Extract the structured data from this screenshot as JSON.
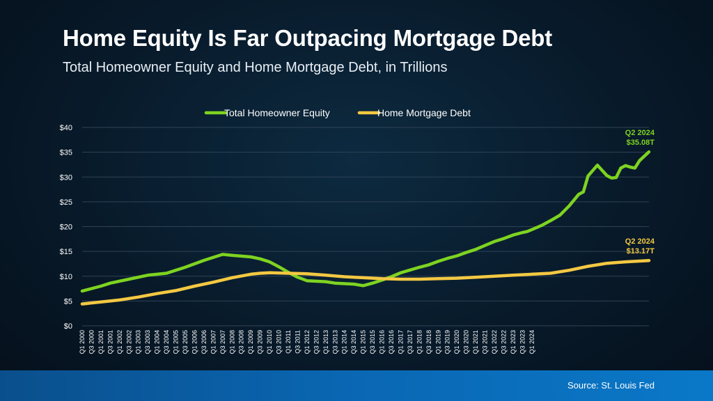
{
  "header": {
    "title": "Home Equity Is Far Outpacing Mortgage Debt",
    "subtitle": "Total Homeowner Equity and Home Mortgage Debt, in Trillions"
  },
  "footer": {
    "source": "Source: St. Louis Fed"
  },
  "colors": {
    "equity": "#7ed321",
    "debt": "#f4c842",
    "grid": "#2f4356",
    "text": "#ffffff"
  },
  "chart_data": {
    "type": "line",
    "title": "Home Equity Is Far Outpacing Mortgage Debt",
    "subtitle": "Total Homeowner Equity and Home Mortgage Debt, in Trillions",
    "xlabel": "",
    "ylabel": "",
    "ylim": [
      0,
      40
    ],
    "yticks": [
      0,
      5,
      10,
      15,
      20,
      25,
      30,
      35,
      40
    ],
    "ytick_labels": [
      "$0",
      "$5",
      "$10",
      "$15",
      "$20",
      "$25",
      "$30",
      "$35",
      "$40"
    ],
    "grid": true,
    "legend_position": "top",
    "x_tick_labels": [
      "Q1 2000",
      "Q3 2000",
      "Q1 2001",
      "Q3 2001",
      "Q1 2002",
      "Q3 2002",
      "Q1 2003",
      "Q3 2003",
      "Q1 2004",
      "Q3 2004",
      "Q1 2005",
      "Q3 2005",
      "Q1 2006",
      "Q3 2006",
      "Q1 2007",
      "Q3 2007",
      "Q1 2008",
      "Q3 2008",
      "Q1 2009",
      "Q3 2009",
      "Q1 2010",
      "Q3 2010",
      "Q1 2011",
      "Q3 2011",
      "Q1 2012",
      "Q3 2012",
      "Q1 2013",
      "Q3 2013",
      "Q1 2014",
      "Q3 2014",
      "Q1 2015",
      "Q3 2015",
      "Q1 2016",
      "Q3 2016",
      "Q1 2017",
      "Q3 2017",
      "Q1 2018",
      "Q3 2018",
      "Q1 2019",
      "Q3 2019",
      "Q1 2020",
      "Q3 2020",
      "Q1 2021",
      "Q3 2021",
      "Q1 2022",
      "Q3 2022",
      "Q1 2023",
      "Q3 2023",
      "Q1 2024"
    ],
    "quarter_count": 98,
    "series": [
      {
        "name": "Total Homeowner Equity",
        "color": "#7ed321",
        "points": [
          [
            0,
            7.0
          ],
          [
            4,
            8.0
          ],
          [
            6,
            8.6
          ],
          [
            10,
            9.4
          ],
          [
            14,
            10.2
          ],
          [
            18,
            10.6
          ],
          [
            22,
            11.8
          ],
          [
            26,
            13.2
          ],
          [
            30,
            14.4
          ],
          [
            32,
            14.2
          ],
          [
            36,
            13.9
          ],
          [
            38,
            13.5
          ],
          [
            40,
            12.9
          ],
          [
            42,
            11.9
          ],
          [
            44,
            10.8
          ],
          [
            46,
            9.8
          ],
          [
            48,
            9.1
          ],
          [
            52,
            8.9
          ],
          [
            54,
            8.6
          ],
          [
            58,
            8.4
          ],
          [
            60,
            8.1
          ],
          [
            62,
            8.6
          ],
          [
            64,
            9.2
          ],
          [
            66,
            9.9
          ],
          [
            68,
            10.7
          ],
          [
            72,
            11.8
          ],
          [
            74,
            12.3
          ],
          [
            76,
            13.0
          ],
          [
            78,
            13.6
          ],
          [
            80,
            14.1
          ],
          [
            82,
            14.8
          ],
          [
            84,
            15.4
          ],
          [
            86,
            16.2
          ],
          [
            88,
            17.0
          ],
          [
            90,
            17.6
          ],
          [
            92,
            18.3
          ],
          [
            94,
            18.8
          ],
          [
            95,
            19.0
          ],
          [
            96,
            19.4
          ],
          [
            98,
            20.2
          ],
          [
            100,
            21.2
          ],
          [
            102,
            22.3
          ],
          [
            104,
            24.2
          ],
          [
            106,
            26.5
          ],
          [
            107,
            27.0
          ],
          [
            108,
            30.2
          ],
          [
            110,
            32.4
          ],
          [
            112,
            30.3
          ],
          [
            113,
            29.8
          ],
          [
            114,
            29.9
          ],
          [
            115,
            31.8
          ],
          [
            116,
            32.3
          ],
          [
            117,
            32.0
          ],
          [
            118,
            31.8
          ],
          [
            119,
            33.3
          ],
          [
            121,
            35.08
          ]
        ]
      },
      {
        "name": "Home Mortgage Debt",
        "color": "#f4c842",
        "points": [
          [
            0,
            4.4
          ],
          [
            4,
            4.8
          ],
          [
            8,
            5.2
          ],
          [
            12,
            5.8
          ],
          [
            16,
            6.5
          ],
          [
            20,
            7.1
          ],
          [
            24,
            8.0
          ],
          [
            28,
            8.8
          ],
          [
            32,
            9.7
          ],
          [
            36,
            10.4
          ],
          [
            38,
            10.6
          ],
          [
            40,
            10.7
          ],
          [
            44,
            10.6
          ],
          [
            48,
            10.5
          ],
          [
            52,
            10.2
          ],
          [
            56,
            9.9
          ],
          [
            60,
            9.7
          ],
          [
            64,
            9.5
          ],
          [
            68,
            9.4
          ],
          [
            72,
            9.4
          ],
          [
            76,
            9.5
          ],
          [
            80,
            9.6
          ],
          [
            84,
            9.8
          ],
          [
            88,
            10.0
          ],
          [
            92,
            10.2
          ],
          [
            96,
            10.4
          ],
          [
            100,
            10.6
          ],
          [
            104,
            11.2
          ],
          [
            108,
            12.0
          ],
          [
            110,
            12.3
          ],
          [
            112,
            12.6
          ],
          [
            116,
            12.9
          ],
          [
            121,
            13.17
          ]
        ]
      }
    ],
    "annotations": [
      {
        "series": "Total Homeowner Equity",
        "label": "Q2 2024",
        "value_label": "$35.08T",
        "x": 121,
        "y": 35.08
      },
      {
        "series": "Home Mortgage Debt",
        "label": "Q2 2024",
        "value_label": "$13.17T",
        "x": 121,
        "y": 13.17
      }
    ]
  }
}
